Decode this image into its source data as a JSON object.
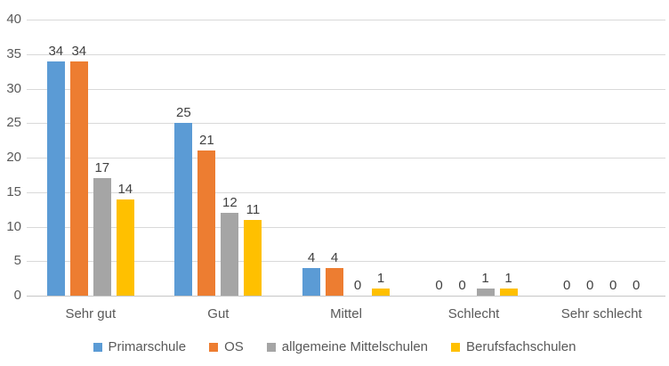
{
  "chart_data": {
    "type": "bar",
    "title": "",
    "categories": [
      "Sehr gut",
      "Gut",
      "Mittel",
      "Schlecht",
      "Sehr schlecht"
    ],
    "series": [
      {
        "name": "Primarschule",
        "color": "#5B9BD5",
        "values": [
          34,
          25,
          4,
          0,
          0
        ]
      },
      {
        "name": "OS",
        "color": "#ED7D31",
        "values": [
          34,
          21,
          4,
          0,
          0
        ]
      },
      {
        "name": "allgemeine Mittelschulen",
        "color": "#A5A5A5",
        "values": [
          17,
          12,
          0,
          1,
          0
        ]
      },
      {
        "name": "Berufsfachschulen",
        "color": "#FFC000",
        "values": [
          14,
          11,
          1,
          1,
          0
        ]
      }
    ],
    "ylim": [
      0,
      40
    ],
    "yticks": [
      0,
      5,
      10,
      15,
      20,
      25,
      30,
      35,
      40
    ],
    "xlabel": "",
    "ylabel": "",
    "grid": true,
    "legend_position": "bottom",
    "data_labels": true
  },
  "style": {
    "gridline_color": "#d9d9d9",
    "baseline_color": "#c6c6c6",
    "axis_text_color": "#595959",
    "data_label_color": "#404040",
    "background": "#ffffff"
  }
}
